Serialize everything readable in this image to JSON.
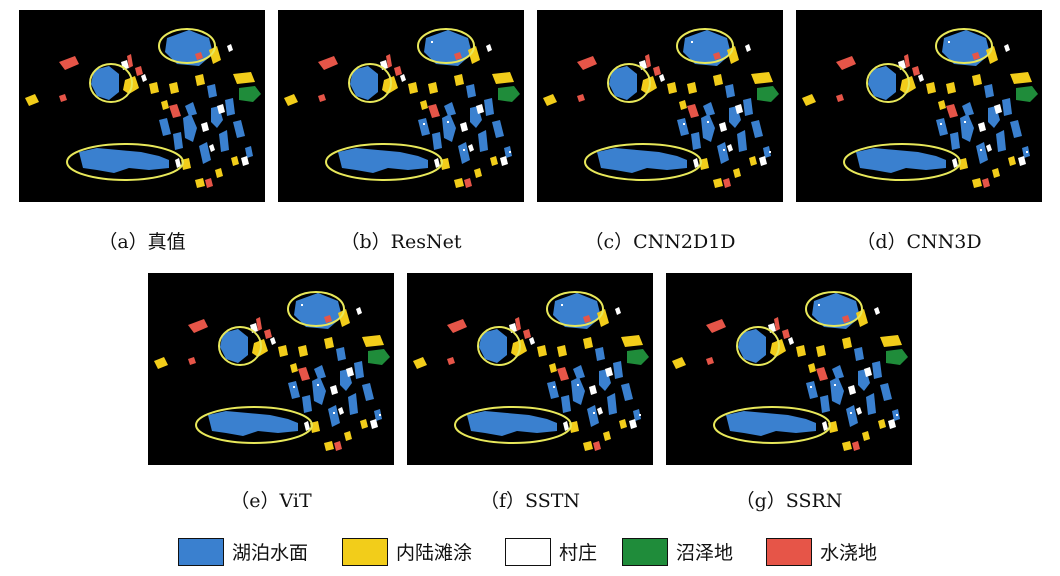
{
  "panels": [
    {
      "caption": "（a）真值"
    },
    {
      "caption": "（b）ResNet"
    },
    {
      "caption": "（c）CNN2D1D"
    },
    {
      "caption": "（d）CNN3D"
    },
    {
      "caption": "（e）ViT"
    },
    {
      "caption": "（f）SSTN"
    },
    {
      "caption": "（g）SSRN"
    }
  ],
  "legend": [
    {
      "label": "湖泊水面",
      "color": "#3a80cf"
    },
    {
      "label": "内陆滩涂",
      "color": "#f2cd1a"
    },
    {
      "label": "村庄",
      "color": "#ffffff"
    },
    {
      "label": "沼泽地",
      "color": "#1f8c3a"
    },
    {
      "label": "水浇地",
      "color": "#e65548"
    }
  ],
  "colors": {
    "background": "#000000",
    "highlight_ellipse": "#e8e85a"
  }
}
